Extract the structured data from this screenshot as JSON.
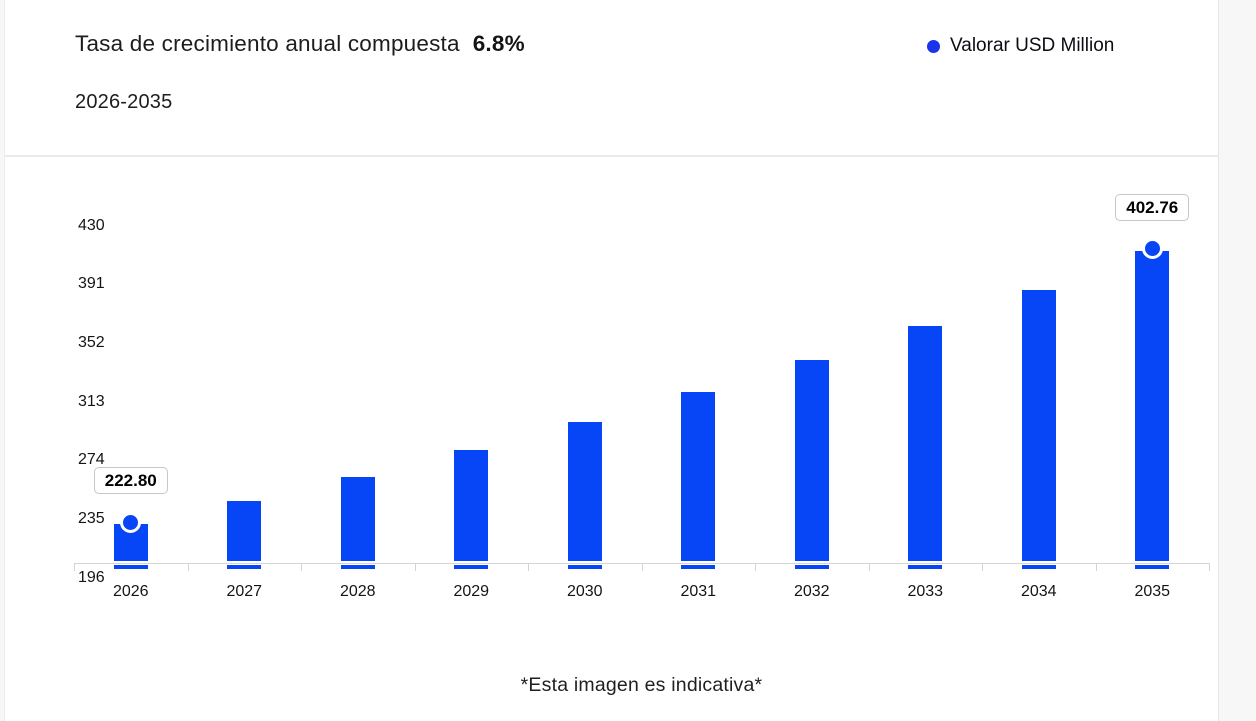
{
  "header": {
    "title": "Tasa de crecimiento anual compuesta",
    "cagr_value": "6.8%",
    "period": "2026-2035"
  },
  "legend": {
    "label": "Valorar USD Million",
    "marker_color": "#1b33ea"
  },
  "chart_data": {
    "type": "bar",
    "title": "Tasa de crecimiento anual compuesta 6.8%",
    "subtitle": "2026-2035",
    "categories": [
      "2026",
      "2027",
      "2028",
      "2029",
      "2030",
      "2031",
      "2032",
      "2033",
      "2034",
      "2035"
    ],
    "series": [
      {
        "name": "Valorar USD Million",
        "values": [
          222.8,
          237.95,
          254.13,
          271.41,
          289.87,
          309.58,
          330.63,
          353.11,
          377.12,
          402.76
        ]
      }
    ],
    "y_ticks": [
      430,
      391,
      352,
      313,
      274,
      235,
      196
    ],
    "ylim": [
      196,
      430
    ],
    "xlabel": "",
    "ylabel": "",
    "grid": false,
    "legend_position": "top-right",
    "bar_color": "#0646f6",
    "axis_color": "#d4d4d4",
    "point_labels": [
      {
        "category": "2026",
        "text": "222.80"
      },
      {
        "category": "2035",
        "text": "402.76"
      }
    ]
  },
  "footer": {
    "note": "*Esta imagen es indicativa*"
  }
}
